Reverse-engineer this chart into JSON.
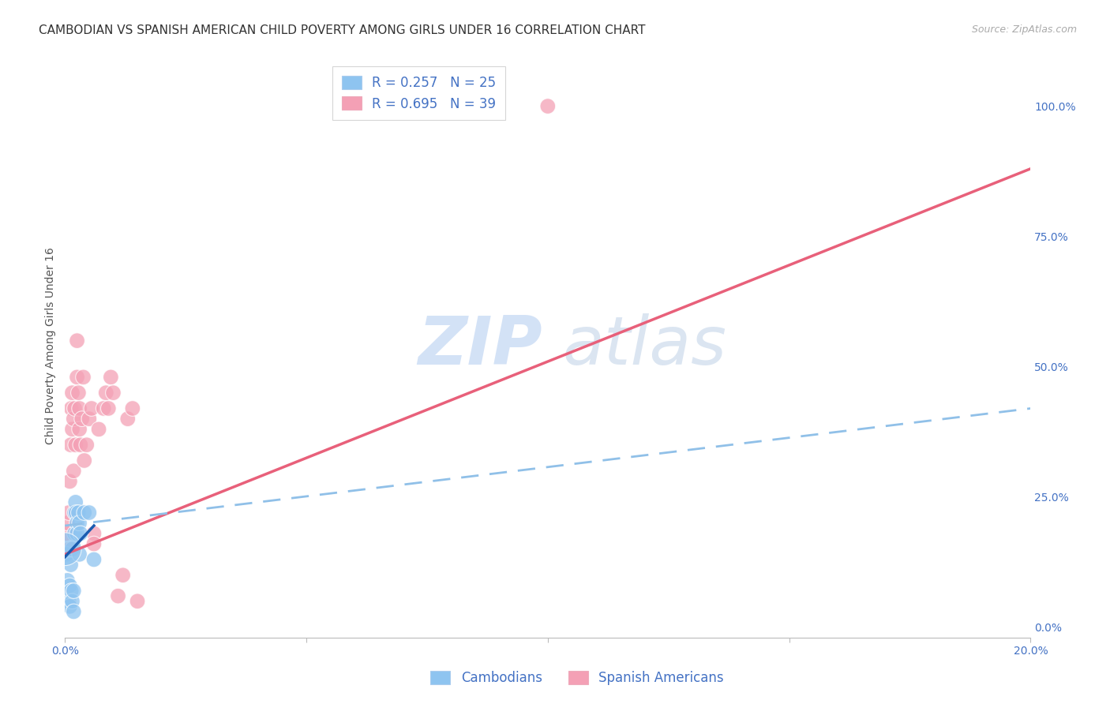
{
  "title": "CAMBODIAN VS SPANISH AMERICAN CHILD POVERTY AMONG GIRLS UNDER 16 CORRELATION CHART",
  "source": "Source: ZipAtlas.com",
  "ylabel": "Child Poverty Among Girls Under 16",
  "xlim": [
    0.0,
    0.2
  ],
  "ylim": [
    -0.02,
    1.1
  ],
  "right_yticks": [
    0.0,
    0.25,
    0.5,
    0.75,
    1.0
  ],
  "right_yticklabels": [
    "0.0%",
    "25.0%",
    "50.0%",
    "75.0%",
    "100.0%"
  ],
  "xticks": [
    0.0,
    0.05,
    0.1,
    0.15,
    0.2
  ],
  "xticklabels": [
    "0.0%",
    "",
    "",
    "",
    "20.0%"
  ],
  "legend_cambodian": "R = 0.257   N = 25",
  "legend_spanish": "R = 0.695   N = 39",
  "cambodian_color": "#8ec4f0",
  "spanish_color": "#f4a0b5",
  "cambodian_line_color": "#1a5cb0",
  "spanish_line_color": "#e8607a",
  "dashed_line_color": "#90c0e8",
  "title_fontsize": 11,
  "axis_label_fontsize": 10,
  "tick_fontsize": 10,
  "legend_fontsize": 12,
  "source_fontsize": 9,
  "background_color": "#ffffff",
  "grid_color": "#cccccc",
  "cambodian_points": [
    [
      0.0003,
      0.14
    ],
    [
      0.0005,
      0.09
    ],
    [
      0.0008,
      0.05
    ],
    [
      0.001,
      0.04
    ],
    [
      0.001,
      0.08
    ],
    [
      0.0012,
      0.12
    ],
    [
      0.0013,
      0.07
    ],
    [
      0.0015,
      0.15
    ],
    [
      0.0015,
      0.05
    ],
    [
      0.0018,
      0.03
    ],
    [
      0.0018,
      0.07
    ],
    [
      0.002,
      0.22
    ],
    [
      0.002,
      0.18
    ],
    [
      0.0022,
      0.24
    ],
    [
      0.0023,
      0.22
    ],
    [
      0.0025,
      0.2
    ],
    [
      0.0025,
      0.18
    ],
    [
      0.0028,
      0.22
    ],
    [
      0.003,
      0.2
    ],
    [
      0.003,
      0.14
    ],
    [
      0.0032,
      0.18
    ],
    [
      0.004,
      0.22
    ],
    [
      0.005,
      0.22
    ],
    [
      0.006,
      0.13
    ],
    [
      0.0,
      0.15
    ]
  ],
  "cambodian_sizes": [
    200,
    200,
    200,
    200,
    200,
    200,
    200,
    200,
    200,
    200,
    200,
    200,
    200,
    200,
    200,
    200,
    200,
    200,
    200,
    200,
    200,
    200,
    200,
    200,
    900
  ],
  "spanish_points": [
    [
      0.0003,
      0.18
    ],
    [
      0.0005,
      0.2
    ],
    [
      0.0008,
      0.22
    ],
    [
      0.001,
      0.15
    ],
    [
      0.001,
      0.28
    ],
    [
      0.0012,
      0.35
    ],
    [
      0.0013,
      0.42
    ],
    [
      0.0015,
      0.38
    ],
    [
      0.0015,
      0.45
    ],
    [
      0.0018,
      0.4
    ],
    [
      0.0018,
      0.3
    ],
    [
      0.002,
      0.42
    ],
    [
      0.0022,
      0.35
    ],
    [
      0.0025,
      0.48
    ],
    [
      0.0025,
      0.55
    ],
    [
      0.0028,
      0.45
    ],
    [
      0.003,
      0.38
    ],
    [
      0.003,
      0.42
    ],
    [
      0.0032,
      0.35
    ],
    [
      0.0035,
      0.4
    ],
    [
      0.0038,
      0.48
    ],
    [
      0.004,
      0.32
    ],
    [
      0.0045,
      0.35
    ],
    [
      0.005,
      0.4
    ],
    [
      0.0055,
      0.42
    ],
    [
      0.006,
      0.18
    ],
    [
      0.006,
      0.16
    ],
    [
      0.007,
      0.38
    ],
    [
      0.008,
      0.42
    ],
    [
      0.0085,
      0.45
    ],
    [
      0.009,
      0.42
    ],
    [
      0.0095,
      0.48
    ],
    [
      0.01,
      0.45
    ],
    [
      0.011,
      0.06
    ],
    [
      0.012,
      0.1
    ],
    [
      0.013,
      0.4
    ],
    [
      0.014,
      0.42
    ],
    [
      0.015,
      0.05
    ],
    [
      0.1,
      1.0
    ]
  ],
  "spanish_sizes": [
    200,
    200,
    200,
    200,
    200,
    200,
    200,
    200,
    200,
    200,
    200,
    200,
    200,
    200,
    200,
    200,
    200,
    200,
    200,
    200,
    200,
    200,
    200,
    200,
    200,
    200,
    200,
    200,
    200,
    200,
    200,
    200,
    200,
    200,
    200,
    200,
    200,
    200,
    200
  ],
  "cambodian_line_x": [
    0.0,
    0.006
  ],
  "cambodian_line_y": [
    0.135,
    0.195
  ],
  "spanish_line_x": [
    0.0,
    0.2
  ],
  "spanish_line_y": [
    0.14,
    0.88
  ],
  "dashed_line_x": [
    0.0,
    0.2
  ],
  "dashed_line_y": [
    0.195,
    0.42
  ]
}
